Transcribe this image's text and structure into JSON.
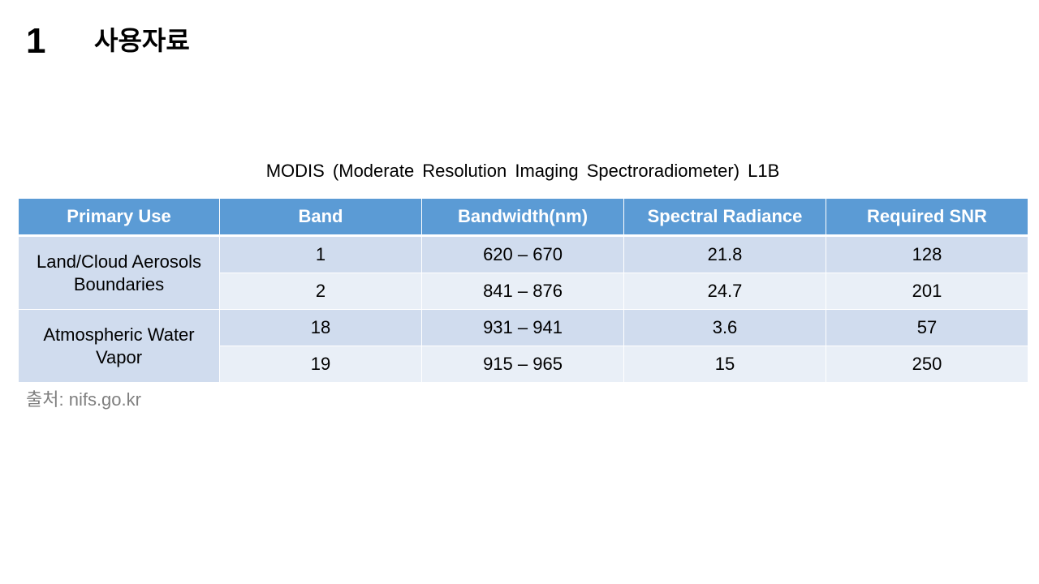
{
  "slide": {
    "number": "1",
    "title": "사용자료"
  },
  "caption": "MODIS (Moderate Resolution Imaging Spectroradiometer) L1B",
  "table": {
    "headers": [
      "Primary Use",
      "Band",
      "Bandwidth(nm)",
      "Spectral Radiance",
      "Required SNR"
    ],
    "groups": [
      {
        "primary_use": "Land/Cloud Aerosols Boundaries",
        "rows": [
          {
            "band": "1",
            "bandwidth": "620 – 670",
            "spectral_radiance": "21.8",
            "required_snr": "128"
          },
          {
            "band": "2",
            "bandwidth": "841 – 876",
            "spectral_radiance": "24.7",
            "required_snr": "201"
          }
        ]
      },
      {
        "primary_use": "Atmospheric Water Vapor",
        "rows": [
          {
            "band": "18",
            "bandwidth": "931 – 941",
            "spectral_radiance": "3.6",
            "required_snr": "57"
          },
          {
            "band": "19",
            "bandwidth": "915 – 965",
            "spectral_radiance": "15",
            "required_snr": "250"
          }
        ]
      }
    ]
  },
  "source": "출처: nifs.go.kr",
  "colors": {
    "header_bg": "#5b9bd5",
    "row_dark": "#d0dcee",
    "row_light": "#e9eff7",
    "source_text": "#7f7f7f"
  }
}
